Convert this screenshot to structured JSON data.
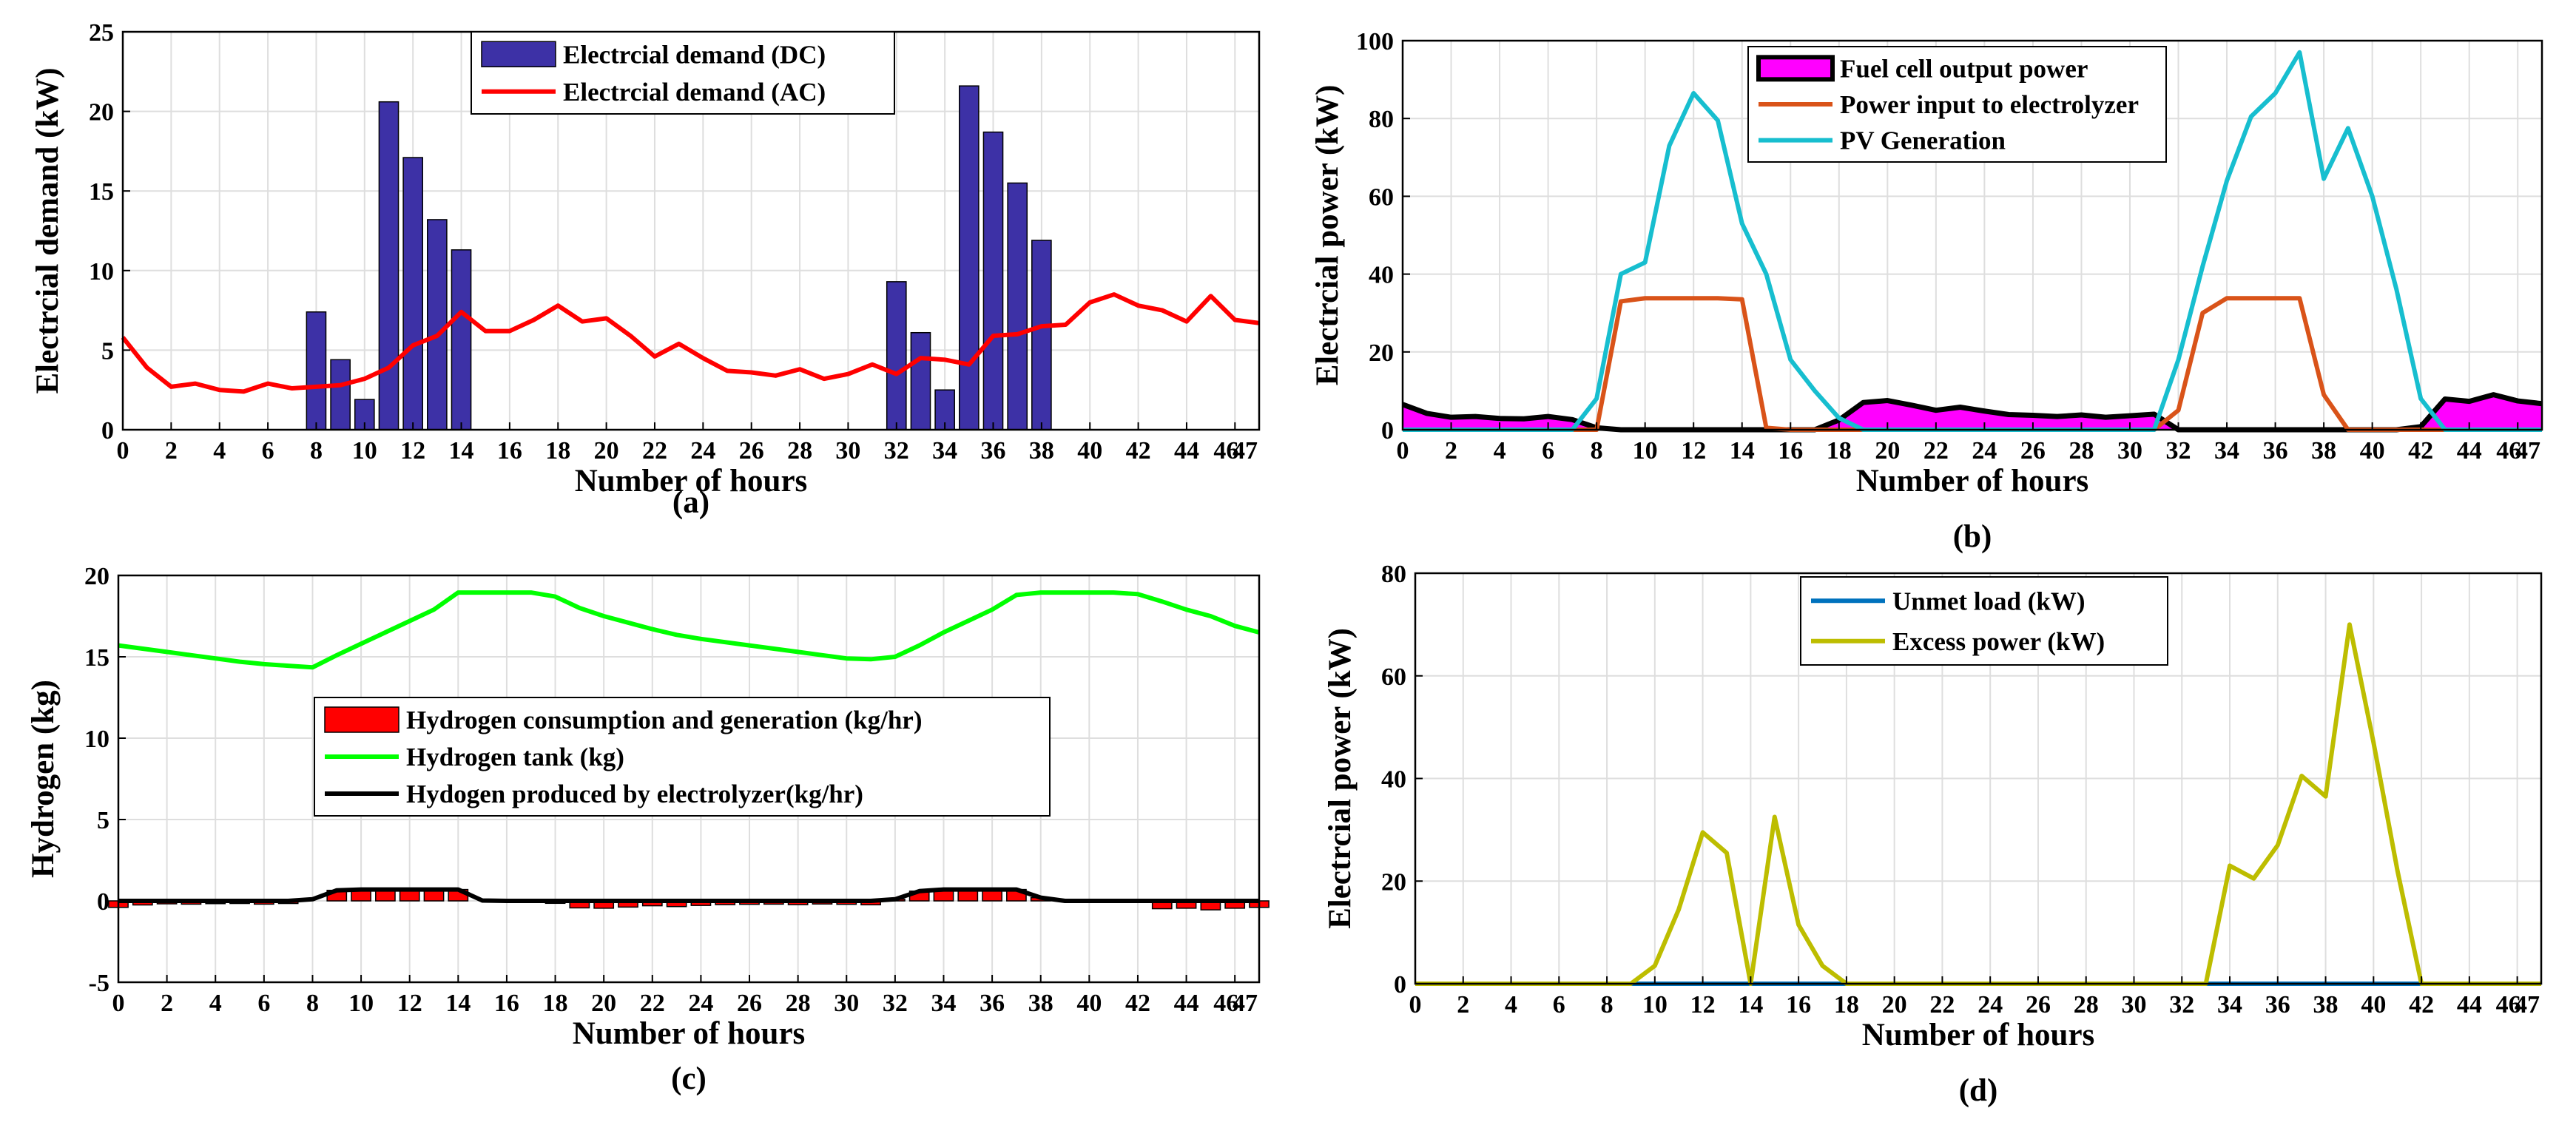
{
  "colors": {
    "dc_bar": "#3d31a6",
    "ac_line": "#ff0000",
    "fuel_cell_fill": "#ff00ff",
    "fuel_cell_edge": "#000000",
    "electrolyzer": "#d95319",
    "pv": "#17becf",
    "h2_bar": "#ff0000",
    "h2_tank": "#00ff00",
    "h2_produced": "#000000",
    "unmet": "#0072bd",
    "excess": "#bdbd00"
  },
  "chart_data": [
    {
      "id": "a",
      "type": "bar",
      "panel_label": "(a)",
      "title": "",
      "xlabel": "Number of hours",
      "ylabel": "Electrcial demand (kW)",
      "xlim": [
        0,
        47
      ],
      "ylim": [
        0,
        25
      ],
      "xticks": [
        0,
        2,
        4,
        6,
        8,
        10,
        12,
        14,
        16,
        18,
        20,
        22,
        24,
        26,
        28,
        30,
        32,
        34,
        36,
        38,
        40,
        42,
        44,
        46,
        47
      ],
      "yticks": [
        0,
        5,
        10,
        15,
        20,
        25
      ],
      "legend_position": "top-center",
      "series": [
        {
          "name": "Electrcial demand (DC)",
          "kind": "bar",
          "color_key": "dc_bar",
          "values": [
            0,
            0,
            0,
            0,
            0,
            0,
            0,
            0,
            7.4,
            4.4,
            1.9,
            20.6,
            17.1,
            13.2,
            11.3,
            0,
            0,
            0,
            0,
            0,
            0,
            0,
            0,
            0,
            0,
            0,
            0,
            0,
            0,
            0,
            0,
            0,
            9.3,
            6.1,
            2.5,
            21.6,
            18.7,
            15.5,
            11.9,
            0,
            0,
            0,
            0,
            0,
            0,
            0,
            0,
            0
          ]
        },
        {
          "name": "Electrcial demand (AC)",
          "kind": "line",
          "color_key": "ac_line",
          "values": [
            5.8,
            3.9,
            2.7,
            2.9,
            2.5,
            2.4,
            2.9,
            2.6,
            2.7,
            2.8,
            3.2,
            3.9,
            5.3,
            5.9,
            7.4,
            6.2,
            6.2,
            6.9,
            7.8,
            6.8,
            7.0,
            5.9,
            4.6,
            5.4,
            4.5,
            3.7,
            3.6,
            3.4,
            3.8,
            3.2,
            3.5,
            4.1,
            3.5,
            4.5,
            4.4,
            4.1,
            5.9,
            6.0,
            6.5,
            6.6,
            8.0,
            8.5,
            7.8,
            7.5,
            6.8,
            8.4,
            6.9,
            6.7
          ]
        }
      ]
    },
    {
      "id": "b",
      "type": "area",
      "panel_label": "(b)",
      "title": "",
      "xlabel": "Number of hours",
      "ylabel": "Electrcial power (kW)",
      "xlim": [
        0,
        47
      ],
      "ylim": [
        0,
        100
      ],
      "xticks": [
        0,
        2,
        4,
        6,
        8,
        10,
        12,
        14,
        16,
        18,
        20,
        22,
        24,
        26,
        28,
        30,
        32,
        34,
        36,
        38,
        40,
        42,
        44,
        46,
        47
      ],
      "yticks": [
        0,
        20,
        40,
        60,
        80,
        100
      ],
      "legend_position": "top-center",
      "series": [
        {
          "name": "Fuel cell output power",
          "kind": "area",
          "color_key": "fuel_cell_fill",
          "edge_key": "fuel_cell_edge",
          "values": [
            6.5,
            4.2,
            3.2,
            3.4,
            2.9,
            2.8,
            3.4,
            2.6,
            0.5,
            0,
            0,
            0,
            0,
            0,
            0,
            0,
            0,
            0,
            2.5,
            7.0,
            7.5,
            6.3,
            5.0,
            5.8,
            4.8,
            3.9,
            3.7,
            3.4,
            3.8,
            3.2,
            3.6,
            4.0,
            0,
            0,
            0,
            0,
            0,
            0,
            0,
            0,
            0,
            0,
            0.8,
            7.9,
            7.3,
            9.0,
            7.4,
            6.7
          ]
        },
        {
          "name": "Power input to electrolyzer",
          "kind": "line",
          "color_key": "electrolyzer",
          "values": [
            0,
            0,
            0,
            0,
            0,
            0,
            0,
            0,
            0,
            33,
            33.8,
            33.8,
            33.8,
            33.8,
            33.5,
            0.5,
            0,
            0,
            0,
            0,
            0,
            0,
            0,
            0,
            0,
            0,
            0,
            0,
            0,
            0,
            0,
            0,
            5,
            30,
            33.8,
            33.8,
            33.8,
            33.8,
            9,
            0,
            0,
            0,
            0,
            0,
            0,
            0,
            0,
            0
          ]
        },
        {
          "name": "PV Generation",
          "kind": "line",
          "color_key": "pv",
          "values": [
            0,
            0,
            0,
            0,
            0,
            0,
            0,
            0,
            8,
            40,
            43,
            73,
            86.5,
            79.5,
            53,
            40,
            18,
            10,
            3,
            0,
            0,
            0,
            0,
            0,
            0,
            0,
            0,
            0,
            0,
            0,
            0,
            0,
            18,
            42,
            64,
            80.5,
            86.5,
            97,
            64.5,
            77.5,
            60,
            36,
            8,
            0,
            0,
            0,
            0,
            0
          ]
        }
      ]
    },
    {
      "id": "c",
      "type": "bar",
      "panel_label": "(c)",
      "title": "",
      "xlabel": "Number of hours",
      "ylabel": "Hydrogen (kg)",
      "xlim": [
        0,
        47
      ],
      "ylim": [
        -5,
        20
      ],
      "xticks": [
        0,
        2,
        4,
        6,
        8,
        10,
        12,
        14,
        16,
        18,
        20,
        22,
        24,
        26,
        28,
        30,
        32,
        34,
        36,
        38,
        40,
        42,
        44,
        46,
        47
      ],
      "yticks": [
        -5,
        0,
        5,
        10,
        15,
        20
      ],
      "legend_position": "center",
      "series": [
        {
          "name": "Hydrogen consumption and generation (kg/hr)",
          "kind": "bar",
          "color_key": "h2_bar",
          "values": [
            -0.4,
            -0.25,
            -0.18,
            -0.2,
            -0.17,
            -0.16,
            -0.2,
            -0.16,
            0,
            0.65,
            0.7,
            0.7,
            0.7,
            0.7,
            0.7,
            0,
            0,
            0,
            -0.15,
            -0.43,
            -0.45,
            -0.38,
            -0.3,
            -0.35,
            -0.28,
            -0.23,
            -0.21,
            -0.2,
            -0.23,
            -0.19,
            -0.21,
            -0.24,
            0.1,
            0.6,
            0.7,
            0.7,
            0.7,
            0.7,
            0.2,
            0,
            0,
            0,
            -0.05,
            -0.48,
            -0.45,
            -0.55,
            -0.45,
            -0.4
          ]
        },
        {
          "name": "Hydrogen tank (kg)",
          "kind": "line",
          "color_key": "h2_tank",
          "values": [
            15.7,
            15.5,
            15.3,
            15.1,
            14.9,
            14.7,
            14.55,
            14.45,
            14.35,
            15.1,
            15.8,
            16.5,
            17.2,
            17.9,
            18.95,
            18.95,
            18.95,
            18.95,
            18.7,
            18.0,
            17.5,
            17.1,
            16.7,
            16.35,
            16.1,
            15.9,
            15.7,
            15.5,
            15.3,
            15.1,
            14.9,
            14.85,
            15.0,
            15.7,
            16.5,
            17.2,
            17.9,
            18.8,
            18.95,
            18.95,
            18.95,
            18.95,
            18.85,
            18.4,
            17.9,
            17.5,
            16.9,
            16.5
          ]
        },
        {
          "name": "Hydogen produced by electrolyzer(kg/hr)",
          "kind": "line",
          "color_key": "h2_produced",
          "values": [
            0,
            0,
            0,
            0,
            0,
            0,
            0,
            0,
            0.1,
            0.65,
            0.7,
            0.7,
            0.7,
            0.7,
            0.7,
            0.02,
            0,
            0,
            0,
            0,
            0,
            0,
            0,
            0,
            0,
            0,
            0,
            0,
            0,
            0,
            0,
            0,
            0.1,
            0.6,
            0.7,
            0.7,
            0.7,
            0.7,
            0.2,
            0,
            0,
            0,
            0,
            0,
            0,
            0,
            0,
            0
          ]
        }
      ]
    },
    {
      "id": "d",
      "type": "line",
      "panel_label": "(d)",
      "title": "",
      "xlabel": "Number of hours",
      "ylabel": "Electrcial power (kW)",
      "xlim": [
        0,
        47
      ],
      "ylim": [
        0,
        80
      ],
      "xticks": [
        0,
        2,
        4,
        6,
        8,
        10,
        12,
        14,
        16,
        18,
        20,
        22,
        24,
        26,
        28,
        30,
        32,
        34,
        36,
        38,
        40,
        42,
        44,
        46,
        47
      ],
      "yticks": [
        0,
        20,
        40,
        60,
        80
      ],
      "legend_position": "top-center",
      "series": [
        {
          "name": "Unmet load (kW)",
          "kind": "line",
          "color_key": "unmet",
          "values": [
            0,
            0,
            0,
            0,
            0,
            0,
            0,
            0,
            0,
            0,
            0,
            0,
            0,
            0,
            0,
            0,
            0,
            0,
            0,
            0,
            0,
            0,
            0,
            0,
            0,
            0,
            0,
            0,
            0,
            0,
            0,
            0,
            0,
            0,
            0,
            0,
            0,
            0,
            0,
            0,
            0,
            0,
            0,
            0,
            0,
            0,
            0,
            0
          ]
        },
        {
          "name": "Excess power (kW)",
          "kind": "line",
          "color_key": "excess",
          "values": [
            0,
            0,
            0,
            0,
            0,
            0,
            0,
            0,
            0,
            0,
            3.5,
            14.5,
            29.5,
            25.5,
            0,
            32.5,
            11.5,
            3.5,
            0,
            0,
            0,
            0,
            0,
            0,
            0,
            0,
            0,
            0,
            0,
            0,
            0,
            0,
            0,
            0,
            23,
            20.5,
            27,
            40.5,
            36.5,
            70,
            47,
            22,
            0,
            0,
            0,
            0,
            0,
            0
          ]
        }
      ]
    }
  ]
}
